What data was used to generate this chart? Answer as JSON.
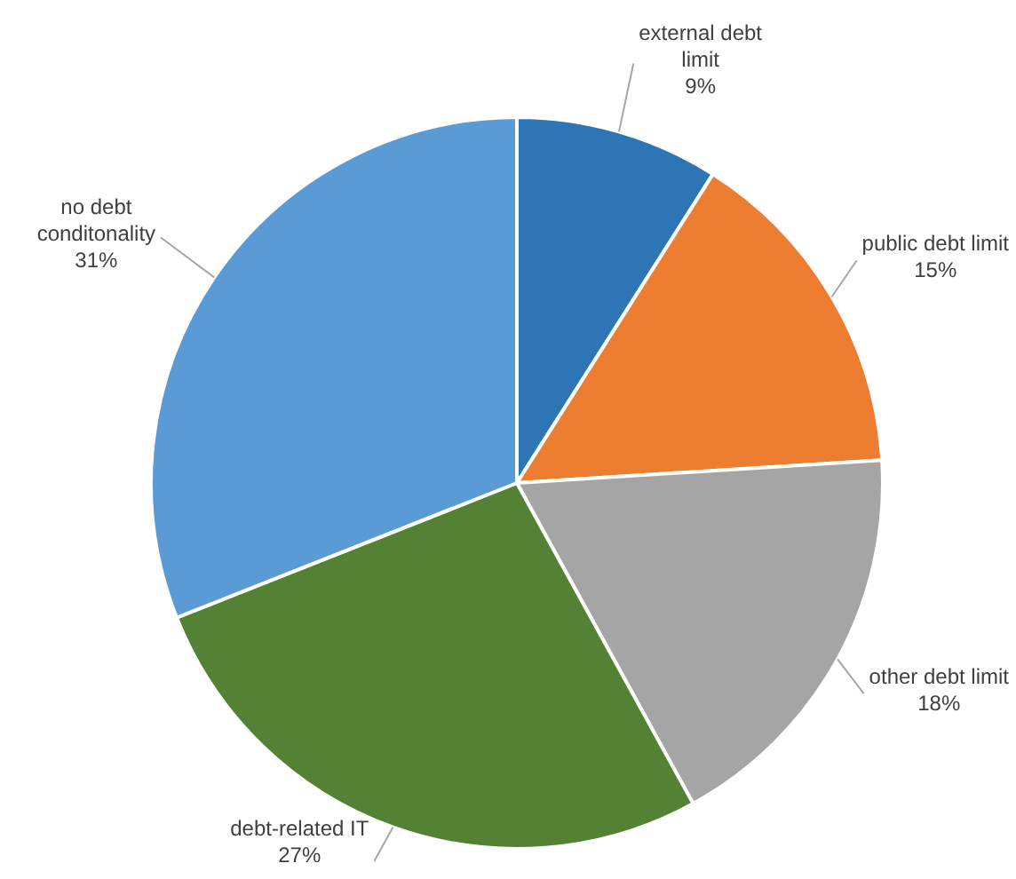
{
  "chart_data": {
    "type": "pie",
    "categories": [
      "external debt limit",
      "public debt limit",
      "other debt limit",
      "debt-related IT",
      "no debt conditonality"
    ],
    "values": [
      9,
      15,
      18,
      27,
      31
    ],
    "value_labels": [
      "9%",
      "15%",
      "18%",
      "27%",
      "31%"
    ],
    "colors": [
      "#2e75b6",
      "#ed7d31",
      "#a5a5a5",
      "#548235",
      "#5b9bd5"
    ],
    "legend": false
  }
}
